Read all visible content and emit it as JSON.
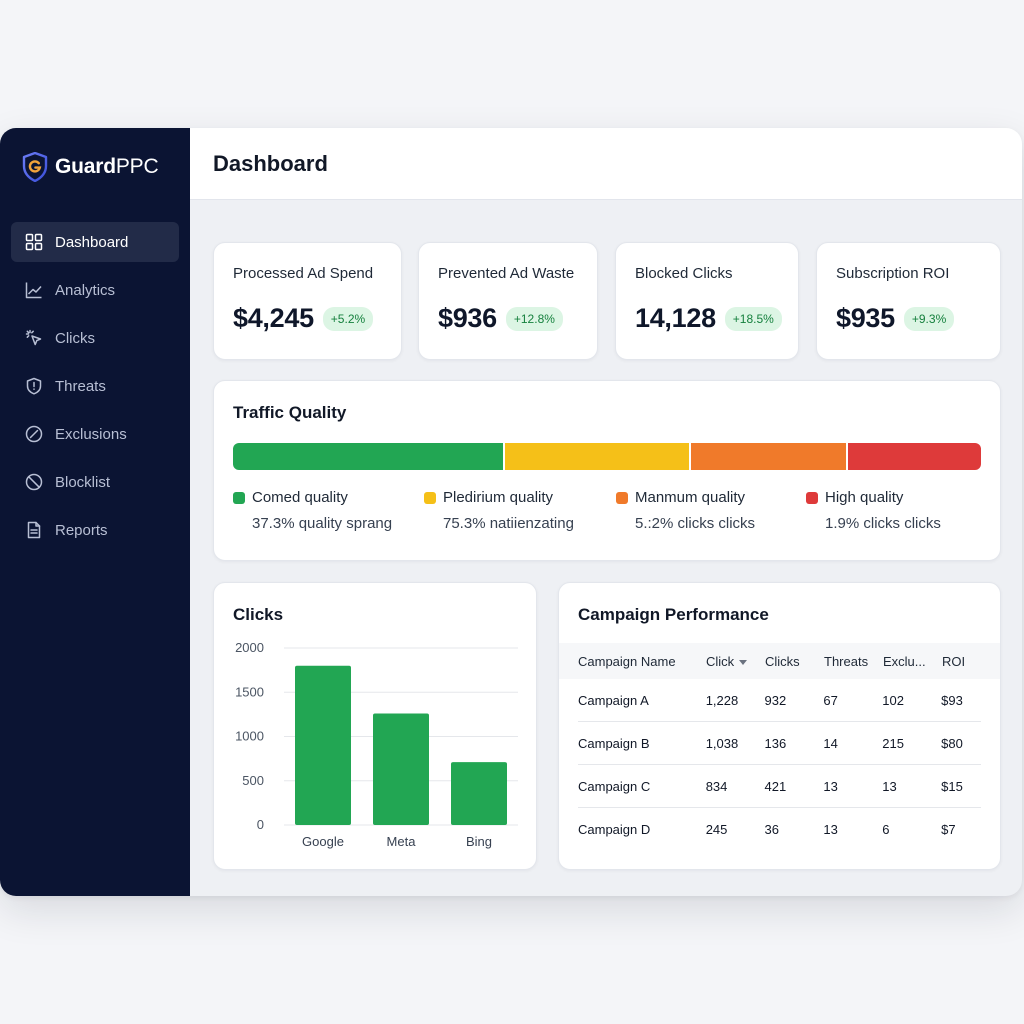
{
  "brand": {
    "prefix": "Guard",
    "suffix": "PPC",
    "logo_icon": "shield-g-icon"
  },
  "sidebar": {
    "items": [
      {
        "label": "Dashboard",
        "icon": "grid-icon",
        "active": true
      },
      {
        "label": "Analytics",
        "icon": "line-chart-icon",
        "active": false
      },
      {
        "label": "Clicks",
        "icon": "cursor-click-icon",
        "active": false
      },
      {
        "label": "Threats",
        "icon": "shield-alert-icon",
        "active": false
      },
      {
        "label": "Exclusions",
        "icon": "slash-circle-icon",
        "active": false
      },
      {
        "label": "Blocklist",
        "icon": "ban-icon",
        "active": false
      },
      {
        "label": "Reports",
        "icon": "document-icon",
        "active": false
      }
    ]
  },
  "header": {
    "title": "Dashboard"
  },
  "kpis": [
    {
      "label": "Processed Ad Spend",
      "value": "$4,245",
      "change": "+5.2%"
    },
    {
      "label": "Prevented Ad Waste",
      "value": "$936",
      "change": "+12.8%"
    },
    {
      "label": "Blocked Clicks",
      "value": "14,128",
      "change": "+18.5%"
    },
    {
      "label": "Subscription ROI",
      "value": "$935",
      "change": "+9.3%"
    }
  ],
  "traffic_quality": {
    "title": "Traffic Quality",
    "segments": [
      {
        "label": "Comed quality",
        "detail": "37.3% quality sprang",
        "share": 36.1,
        "color": "#22a653"
      },
      {
        "label": "Pledirium quality",
        "detail": "75.3% natiienzating",
        "share": 24.8,
        "color": "#f5c018"
      },
      {
        "label": "Manmum quality",
        "detail": "5.:2% clicks clicks",
        "share": 21.1,
        "color": "#f07a2a"
      },
      {
        "label": "High quality",
        "detail": "1.9% clicks clicks",
        "share": 18.0,
        "color": "#de3a3a"
      }
    ]
  },
  "clicks_card": {
    "title": "Clicks"
  },
  "chart_data": {
    "type": "bar",
    "categories": [
      "Google",
      "Meta",
      "Bing"
    ],
    "values": [
      1800,
      1260,
      710
    ],
    "title": "Clicks",
    "xlabel": "",
    "ylabel": "",
    "ylim": [
      0,
      2000
    ],
    "yticks": [
      0,
      500,
      1000,
      1500,
      2000
    ],
    "grid": true,
    "bar_color": "#22a653"
  },
  "campaigns": {
    "title": "Campaign Performance",
    "columns": [
      "Campaign Name",
      "Click",
      "Clicks",
      "Threats",
      "Exclu...",
      "ROI"
    ],
    "rows": [
      [
        "Campaign A",
        "1,228",
        "932",
        "67",
        "102",
        "$93"
      ],
      [
        "Campaign B",
        "1,038",
        "136",
        "14",
        "215",
        "$80"
      ],
      [
        "Campaign C",
        "834",
        "421",
        "13",
        "13",
        "$15"
      ],
      [
        "Campaign D",
        "245",
        "36",
        "13",
        "6",
        "$7"
      ]
    ]
  }
}
